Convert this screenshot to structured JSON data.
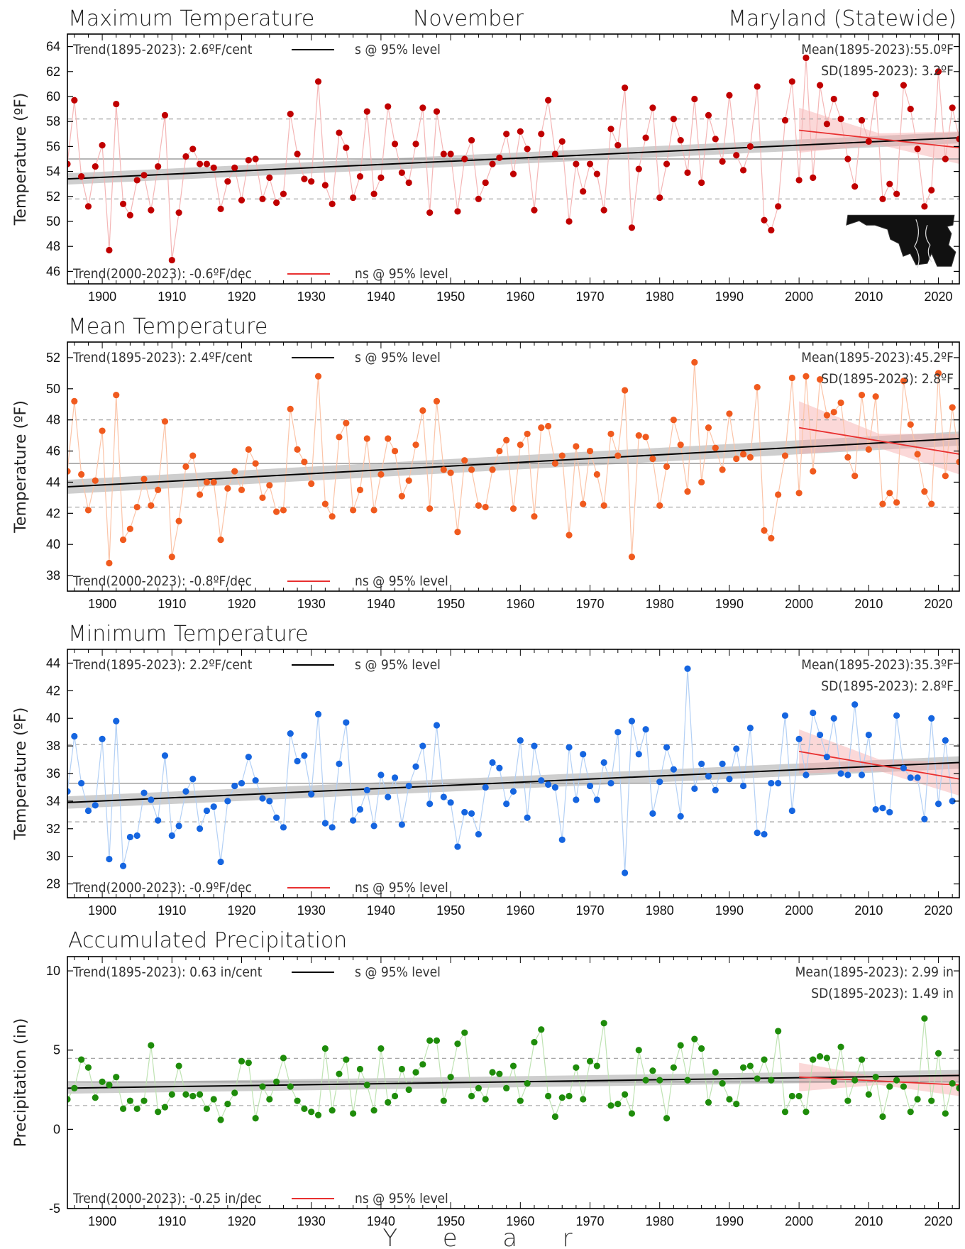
{
  "header": {
    "left": "Maximum Temperature",
    "center": "November",
    "right": "Maryland (Statewide)"
  },
  "xlabel": "Y  e  a  r",
  "chart_data": [
    {
      "type": "line",
      "title": "Maximum Temperature",
      "ylabel": "Temperature (ºF)",
      "color": "#c00000",
      "line_color": "#f4b6b6",
      "ylim": [
        45,
        65
      ],
      "yticks": [
        46,
        48,
        50,
        52,
        54,
        56,
        58,
        60,
        62,
        64
      ],
      "xlim": [
        1895,
        2023
      ],
      "xticks": [
        1900,
        1910,
        1920,
        1930,
        1940,
        1950,
        1960,
        1970,
        1980,
        1990,
        2000,
        2010,
        2020
      ],
      "trend_long_label": "Trend(1895-2023):  2.6ºF/cent",
      "trend_long_sig": "s @ 95% level",
      "trend_short_label": "Trend(2000-2023):  -0.6ºF/dec",
      "trend_short_sig": "ns @ 95% level",
      "mean_label": "Mean(1895-2023):55.0ºF",
      "sd_label": "SD(1895-2023): 3.2ºF",
      "mean": 55.0,
      "sd": 3.2,
      "trend_long": {
        "x": [
          1895,
          2023
        ],
        "y": [
          53.4,
          56.7
        ],
        "band": 0.45
      },
      "trend_short": {
        "x": [
          2000,
          2023
        ],
        "y": [
          57.3,
          55.9
        ],
        "band_start": 1.8,
        "band_end": 1.3
      },
      "inset_map": true,
      "series": [
        {
          "x_start": 1895,
          "values": [
            54.6,
            59.7,
            53.6,
            51.2,
            54.4,
            56.1,
            47.7,
            59.4,
            51.4,
            50.5,
            53.3,
            53.7,
            50.9,
            54.4,
            58.5,
            46.9,
            50.7,
            55.2,
            55.8,
            54.6,
            54.6,
            54.3,
            51.0,
            53.2,
            54.3,
            51.7,
            54.9,
            55.0,
            51.8,
            53.5,
            51.5,
            52.2,
            58.6,
            55.4,
            53.4,
            53.2,
            61.2,
            52.9,
            51.4,
            57.1,
            55.9,
            51.9,
            53.6,
            58.8,
            52.2,
            53.5,
            59.2,
            56.2,
            53.9,
            53.1,
            56.2,
            59.1,
            50.7,
            58.8,
            55.4,
            55.4,
            50.8,
            55.0,
            56.5,
            51.8,
            53.1,
            54.6,
            55.1,
            57.0,
            53.8,
            57.2,
            55.8,
            50.9,
            57.0,
            59.7,
            55.4,
            56.4,
            50.0,
            54.6,
            52.4,
            54.6,
            53.8,
            50.9,
            57.4,
            56.1,
            60.7,
            49.5,
            54.2,
            56.7,
            59.1,
            51.9,
            54.6,
            58.2,
            56.5,
            53.9,
            59.8,
            53.1,
            58.5,
            56.6,
            54.8,
            60.1,
            55.3,
            54.1,
            56.0,
            60.8,
            50.1,
            49.3,
            51.2,
            58.1,
            61.2,
            53.3,
            63.1,
            53.5,
            60.9,
            57.8,
            59.8,
            58.2,
            55.0,
            52.8,
            58.1,
            56.4,
            60.2,
            51.8,
            53.0,
            52.2,
            60.9,
            59.0,
            55.8,
            51.2,
            52.5,
            62.0,
            55.0,
            59.1,
            56.6
          ]
        }
      ]
    },
    {
      "type": "line",
      "title": "Mean Temperature",
      "ylabel": "Temperature (ºF)",
      "color": "#f05a1e",
      "line_color": "#fbc4a8",
      "ylim": [
        37,
        53
      ],
      "yticks": [
        38,
        40,
        42,
        44,
        46,
        48,
        50,
        52
      ],
      "xlim": [
        1895,
        2023
      ],
      "xticks": [
        1900,
        1910,
        1920,
        1930,
        1940,
        1950,
        1960,
        1970,
        1980,
        1990,
        2000,
        2010,
        2020
      ],
      "trend_long_label": "Trend(1895-2023):  2.4ºF/cent",
      "trend_long_sig": "s @ 95% level",
      "trend_short_label": "Trend(2000-2023):  -0.8ºF/dec",
      "trend_short_sig": "ns @ 95% level",
      "mean_label": "Mean(1895-2023):45.2ºF",
      "sd_label": "SD(1895-2023): 2.8ºF",
      "mean": 45.2,
      "sd": 2.8,
      "trend_long": {
        "x": [
          1895,
          2023
        ],
        "y": [
          43.7,
          46.8
        ],
        "band": 0.45
      },
      "trend_short": {
        "x": [
          2000,
          2023
        ],
        "y": [
          47.5,
          45.8
        ],
        "band_start": 1.7,
        "band_end": 1.3
      },
      "inset_map": false,
      "series": [
        {
          "x_start": 1895,
          "values": [
            44.7,
            49.2,
            44.5,
            42.2,
            44.1,
            47.3,
            38.8,
            49.6,
            40.3,
            41.0,
            42.4,
            44.2,
            42.5,
            43.5,
            47.9,
            39.2,
            41.5,
            45.0,
            45.7,
            43.2,
            44.0,
            44.0,
            40.3,
            43.6,
            44.7,
            43.5,
            46.1,
            45.2,
            43.0,
            43.8,
            42.1,
            42.2,
            48.7,
            46.1,
            45.3,
            43.9,
            50.8,
            42.6,
            41.8,
            46.9,
            47.8,
            42.2,
            43.5,
            46.8,
            42.2,
            44.5,
            46.8,
            46.0,
            43.1,
            44.1,
            46.4,
            48.6,
            42.3,
            49.2,
            44.8,
            44.6,
            40.8,
            45.4,
            44.8,
            42.5,
            42.4,
            44.8,
            46.0,
            46.7,
            42.3,
            46.4,
            47.1,
            41.8,
            47.5,
            47.6,
            45.2,
            45.7,
            40.6,
            46.3,
            42.6,
            46.0,
            44.5,
            42.5,
            47.1,
            45.7,
            49.9,
            39.2,
            47.0,
            46.9,
            45.5,
            42.5,
            45.0,
            48.0,
            46.4,
            43.4,
            51.7,
            44.0,
            47.5,
            46.2,
            44.8,
            48.4,
            45.5,
            45.8,
            45.6,
            50.1,
            40.9,
            40.4,
            43.2,
            45.7,
            50.7,
            43.3,
            50.8,
            44.7,
            50.6,
            48.3,
            48.5,
            49.1,
            45.6,
            44.4,
            49.6,
            46.1,
            49.5,
            42.6,
            43.3,
            42.7,
            50.5,
            47.7,
            45.8,
            43.4,
            42.6,
            51.0,
            44.4,
            48.8,
            45.3
          ]
        }
      ]
    },
    {
      "type": "line",
      "title": "Minimum Temperature",
      "ylabel": "Temperature (ºF)",
      "color": "#1565e0",
      "line_color": "#b3d0f5",
      "ylim": [
        27,
        45
      ],
      "yticks": [
        28,
        30,
        32,
        34,
        36,
        38,
        40,
        42,
        44
      ],
      "xlim": [
        1895,
        2023
      ],
      "xticks": [
        1900,
        1910,
        1920,
        1930,
        1940,
        1950,
        1960,
        1970,
        1980,
        1990,
        2000,
        2010,
        2020
      ],
      "trend_long_label": "Trend(1895-2023):  2.2ºF/cent",
      "trend_long_sig": "s @ 95% level",
      "trend_short_label": "Trend(2000-2023):  -0.9ºF/dec",
      "trend_short_sig": "ns @ 95% level",
      "mean_label": "Mean(1895-2023):35.3ºF",
      "sd_label": "SD(1895-2023): 2.8ºF",
      "mean": 35.3,
      "sd": 2.8,
      "trend_long": {
        "x": [
          1895,
          2023
        ],
        "y": [
          33.9,
          36.8
        ],
        "band": 0.45
      },
      "trend_short": {
        "x": [
          2000,
          2023
        ],
        "y": [
          37.6,
          35.6
        ],
        "band_start": 1.6,
        "band_end": 1.2
      },
      "inset_map": false,
      "series": [
        {
          "x_start": 1895,
          "values": [
            34.7,
            38.7,
            35.3,
            33.3,
            33.7,
            38.5,
            29.8,
            39.8,
            29.3,
            31.4,
            31.5,
            34.6,
            34.1,
            32.6,
            37.3,
            31.5,
            32.2,
            34.7,
            35.6,
            32.0,
            33.3,
            33.6,
            29.6,
            34.0,
            35.1,
            35.3,
            37.2,
            35.5,
            34.2,
            34.0,
            32.8,
            32.1,
            38.9,
            36.9,
            37.3,
            34.5,
            40.3,
            32.4,
            32.1,
            36.7,
            39.7,
            32.6,
            33.4,
            34.8,
            32.2,
            35.9,
            34.3,
            35.7,
            32.3,
            35.1,
            36.5,
            38.0,
            33.8,
            39.5,
            34.3,
            33.9,
            30.7,
            33.2,
            33.1,
            31.6,
            35.0,
            36.8,
            36.4,
            33.8,
            34.7,
            38.4,
            32.8,
            38.0,
            35.5,
            35.2,
            35.0,
            31.2,
            37.9,
            34.1,
            37.4,
            35.1,
            34.1,
            36.8,
            35.3,
            39.0,
            28.8,
            39.8,
            37.4,
            39.2,
            33.1,
            35.4,
            37.9,
            36.3,
            32.9,
            43.6,
            34.9,
            36.7,
            35.8,
            34.8,
            36.7,
            35.6,
            37.8,
            35.1,
            39.3,
            31.7,
            31.6,
            35.3,
            35.3,
            40.2,
            33.3,
            38.5,
            35.9,
            40.4,
            38.8,
            37.2,
            40.0,
            36.0,
            35.9,
            41.0,
            35.9,
            38.8,
            33.4,
            33.5,
            33.2,
            40.2,
            36.4,
            35.7,
            35.7,
            32.7,
            40.0,
            33.8,
            38.4,
            34.0
          ]
        }
      ]
    },
    {
      "type": "line",
      "title": "Accumulated Precipitation",
      "ylabel": "Precipitation (in)",
      "color": "#1e8c0a",
      "line_color": "#bfe3b3",
      "ylim": [
        -5,
        10.9
      ],
      "yticks": [
        -5,
        0,
        5,
        10
      ],
      "xlim": [
        1895,
        2023
      ],
      "xticks": [
        1900,
        1910,
        1920,
        1930,
        1940,
        1950,
        1960,
        1970,
        1980,
        1990,
        2000,
        2010,
        2020
      ],
      "trend_long_label": "Trend(1895-2023):  0.63 in/cent",
      "trend_long_sig": "s @ 95% level",
      "trend_short_label": "Trend(2000-2023):  -0.25 in/dec",
      "trend_short_sig": "ns @ 95% level",
      "mean_label": "Mean(1895-2023): 2.99 in",
      "sd_label": "SD(1895-2023): 1.49 in",
      "mean": 2.99,
      "sd": 1.49,
      "trend_long": {
        "x": [
          1895,
          2023
        ],
        "y": [
          2.6,
          3.4
        ],
        "band": 0.35
      },
      "trend_short": {
        "x": [
          2000,
          2023
        ],
        "y": [
          3.3,
          2.8
        ],
        "band_start": 0.9,
        "band_end": 0.7
      },
      "inset_map": false,
      "series": [
        {
          "x_start": 1895,
          "values": [
            1.9,
            2.6,
            4.4,
            3.9,
            2.0,
            3.0,
            2.8,
            3.3,
            1.3,
            1.8,
            1.3,
            1.8,
            5.3,
            1.1,
            1.4,
            2.2,
            4.0,
            2.2,
            2.1,
            2.2,
            1.3,
            1.9,
            0.6,
            1.6,
            2.3,
            4.3,
            4.2,
            0.7,
            2.7,
            1.9,
            3.0,
            4.5,
            2.7,
            1.8,
            1.3,
            1.1,
            0.9,
            5.1,
            1.2,
            3.5,
            4.4,
            1.0,
            3.8,
            2.8,
            1.2,
            5.1,
            1.7,
            2.1,
            3.8,
            2.5,
            3.6,
            4.1,
            5.6,
            5.6,
            1.8,
            3.3,
            5.4,
            6.1,
            2.1,
            2.6,
            1.9,
            3.6,
            3.5,
            2.6,
            4.0,
            1.8,
            2.9,
            5.5,
            6.3,
            2.1,
            0.8,
            2.0,
            2.1,
            3.9,
            1.9,
            4.3,
            4.0,
            6.7,
            1.5,
            1.6,
            2.2,
            1.0,
            5.0,
            3.1,
            3.7,
            3.1,
            0.7,
            3.9,
            5.3,
            3.1,
            5.7,
            5.1,
            1.7,
            3.6,
            2.9,
            1.9,
            1.6,
            3.9,
            4.0,
            3.2,
            4.4,
            3.1,
            6.2,
            1.1,
            2.1,
            2.1,
            1.1,
            4.4,
            4.6,
            4.5,
            3.0,
            5.2,
            1.8,
            3.1,
            4.4,
            2.2,
            3.3,
            0.8,
            2.7,
            3.1,
            2.7,
            1.1,
            1.9,
            7.0,
            1.8,
            4.8,
            1.0,
            2.9,
            2.6
          ]
        }
      ]
    }
  ]
}
